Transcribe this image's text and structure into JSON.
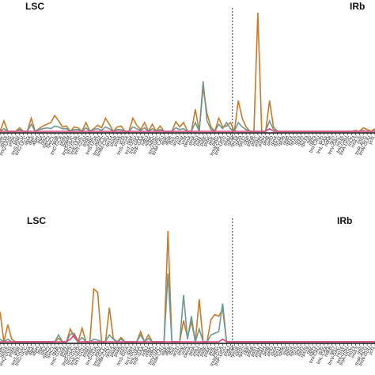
{
  "colors": {
    "orange": "#c8792a",
    "teal": "#6b9a94",
    "pink": "#e0407f",
    "axis": "#111111",
    "divider": "#333333"
  },
  "chart_data": [
    {
      "type": "line",
      "panel": "top",
      "regions": [
        "LSC",
        "IRb"
      ],
      "boundary_index": 59,
      "categories": [
        "psbA",
        "matK",
        "rps16",
        "trnQ-UUG",
        "psbK",
        "psbI",
        "trnS-GCU",
        "trnG-UCC",
        "atpA",
        "atpF",
        "atpH",
        "atpI",
        "rps2",
        "rpoC2",
        "rpoC1",
        "rpoB",
        "trnC-GCA",
        "petN",
        "psbM",
        "trnD-GUC",
        "trnY-GUA",
        "trnE-UUC",
        "trnT-GGU",
        "psbD",
        "psbC",
        "trnS-UGA",
        "psbZ",
        "trnG-GCC",
        "trnfM-CAU",
        "rps14",
        "psaB",
        "psaA",
        "ycf3",
        "trnS-GGA",
        "rps4",
        "trnT-UGU",
        "trnL-UAA",
        "trnF-GAA",
        "ndhJ",
        "ndhK",
        "ndhC",
        "trnV-UAC",
        "trnM-CAU",
        "atpE",
        "atpB",
        "rbcL",
        "accD",
        "psaI",
        "ycf4",
        "cemA",
        "petA",
        "psbJ",
        "psbL",
        "psbF",
        "psbE",
        "petL",
        "petG",
        "trnW-CCA",
        "trnP-UGG",
        "psaJ",
        "rpl33",
        "rps18",
        "rpl20",
        "rps12",
        "clpP",
        "psbB",
        "psbT",
        "psbN",
        "psbH",
        "petB",
        "petD",
        "rpoA",
        "rps11",
        "rpl36",
        "rps8",
        "rpl14",
        "rpl16",
        "rps3",
        "rpl22",
        "rps19",
        "rpl2",
        "rpl23",
        "trnI-CAU",
        "ycf2",
        "trnL-CAA",
        "ndhB",
        "rps7",
        "trnV-GAC",
        "rrn16",
        "trnI-GAU",
        "trnA-UGC",
        "rrn23",
        "rrn4.5",
        "rrn5",
        "trnR-ACG",
        "trnN-GUU",
        "ycf1"
      ],
      "series": [
        {
          "values": [
            0,
            1.2,
            0,
            0,
            0,
            0.4,
            0,
            0,
            1.5,
            0,
            0.3,
            0.6,
            0.8,
            1.0,
            1.8,
            1.2,
            0.5,
            0.6,
            0,
            0.5,
            0.4,
            0,
            1.0,
            0,
            0.3,
            0.7,
            0.4,
            1.5,
            0.8,
            0,
            0.5,
            0.6,
            0,
            0,
            1.5,
            0.7,
            0.2,
            1.0,
            0,
            0.8,
            0,
            0.6,
            0,
            0,
            0,
            1.1,
            0.5,
            1.0,
            0,
            0,
            2.5,
            0,
            5.0,
            2.0,
            0.5,
            0,
            1.5,
            0.5,
            0.6,
            1.0,
            0,
            3.5,
            1.5,
            0.5,
            0,
            0,
            13.5,
            0,
            0,
            3.5,
            0.5,
            0,
            0,
            0,
            0,
            0,
            0,
            0,
            0,
            0,
            0,
            0,
            0,
            0,
            0,
            0,
            0,
            0,
            0,
            0,
            0,
            0.1,
            0,
            0.4,
            0.2,
            0,
            0.3
          ]
        },
        {
          "values": [
            0,
            0.3,
            0,
            0,
            0,
            0.2,
            0,
            0,
            0.8,
            0,
            0.2,
            0.3,
            0.4,
            0.3,
            0.6,
            0.5,
            0.3,
            0.3,
            0,
            0.2,
            0.2,
            0,
            0.4,
            0,
            0.2,
            0.3,
            0.1,
            0.5,
            0.3,
            0,
            0.2,
            0.2,
            0,
            0,
            0.5,
            0.3,
            0.1,
            0.4,
            0,
            0.3,
            0,
            0.2,
            0,
            0,
            0,
            0.4,
            0.2,
            0.3,
            0,
            0,
            1.0,
            0,
            5.7,
            1.2,
            0.2,
            0,
            0.8,
            0.3,
            1.0,
            0.3,
            0,
            1.0,
            0.5,
            0.2,
            0,
            0,
            0,
            0,
            0,
            1.2,
            0.2,
            0,
            0,
            0,
            0,
            0,
            0,
            0,
            0,
            0,
            0,
            0,
            0,
            0,
            0,
            0,
            0,
            0,
            0,
            0,
            0,
            0,
            0,
            0.1,
            0,
            0,
            0.1
          ]
        },
        {
          "values": [
            0,
            0,
            0,
            0,
            0,
            0,
            0,
            0,
            0,
            0,
            0,
            0,
            0,
            0,
            0,
            0,
            0,
            0,
            0,
            0,
            0,
            0,
            0,
            0,
            0,
            0,
            0,
            0,
            0,
            0,
            0,
            0,
            0,
            0,
            0,
            0,
            0,
            0,
            0,
            0,
            0,
            0,
            0,
            0,
            0,
            0,
            0,
            0,
            0,
            0,
            0,
            0,
            0,
            0,
            0,
            0,
            0,
            0,
            0,
            0,
            0,
            0,
            0,
            0,
            0,
            0,
            0,
            0,
            0,
            0.3,
            0,
            0,
            0,
            0,
            0,
            0,
            0,
            0,
            0,
            0,
            0,
            0,
            0,
            0,
            0,
            0,
            0,
            0,
            0,
            0,
            0,
            0,
            0,
            0,
            0,
            0,
            0
          ]
        }
      ]
    },
    {
      "type": "line",
      "panel": "bottom",
      "regions": [
        "LSC",
        "IRb"
      ],
      "boundary_index": 59,
      "categories": [
        "psbA",
        "matK",
        "rps16",
        "trnQ-UUG",
        "psbK",
        "psbI",
        "trnS-GCU",
        "trnG-UCC",
        "atpA",
        "atpF",
        "atpH",
        "atpI",
        "rps2",
        "rpoC2",
        "rpoC1",
        "rpoB",
        "trnC-GCA",
        "petN",
        "psbM",
        "trnD-GUC",
        "trnY-GUA",
        "trnE-UUC",
        "trnT-GGU",
        "psbD",
        "psbC",
        "trnS-UGA",
        "psbZ",
        "trnG-GCC",
        "trnfM-CAU",
        "rps14",
        "psaB",
        "psaA",
        "ycf3",
        "trnS-GGA",
        "rps4",
        "trnT-UGU",
        "trnL-UAA",
        "trnF-GAA",
        "ndhJ",
        "ndhK",
        "ndhC",
        "trnV-UAC",
        "trnM-CAU",
        "atpE",
        "atpB",
        "rbcL",
        "accD",
        "psaI",
        "ycf4",
        "cemA",
        "petA",
        "psbJ",
        "psbL",
        "psbF",
        "psbE",
        "petL",
        "petG",
        "trnW-CCA",
        "trnP-UGG",
        "psaJ",
        "rpl33",
        "rps18",
        "rpl20",
        "rps12",
        "clpP",
        "psbB",
        "psbT",
        "psbN",
        "psbH",
        "petB",
        "petD",
        "rpoA",
        "rps11",
        "rpl36",
        "rps8",
        "rpl14",
        "rpl16",
        "rps3",
        "rpl22",
        "rps19",
        "rpl2",
        "rpl23",
        "trnI-CAU",
        "ycf2",
        "trnL-CAA",
        "ndhB",
        "rps7",
        "trnV-GAC",
        "rrn16",
        "trnI-GAU",
        "trnA-UGC",
        "rrn23",
        "rrn4.5",
        "rrn5",
        "trnR-ACG",
        "trnN-GUU",
        "ycf1"
      ],
      "series": [
        {
          "values": [
            3.5,
            0,
            2.0,
            0.3,
            0,
            0,
            0,
            0,
            0,
            0,
            0,
            0,
            0,
            0,
            0,
            0.4,
            0,
            0,
            1.5,
            0.5,
            0,
            1.6,
            0,
            0,
            6.2,
            5.8,
            0,
            0,
            4.0,
            0.4,
            0,
            0.5,
            0,
            0,
            0,
            0,
            1.2,
            0,
            0.8,
            0,
            0,
            0,
            0,
            13.0,
            0,
            0,
            0,
            2.5,
            0.5,
            2.4,
            0,
            5.0,
            0,
            0,
            2.6,
            3.2,
            3.0,
            3.8,
            0,
            0,
            0,
            0,
            0,
            0,
            0,
            0,
            0,
            0,
            0,
            0,
            0,
            0,
            0,
            0,
            0,
            0,
            0,
            0,
            0,
            0,
            0,
            0,
            0,
            0,
            0,
            0,
            0,
            0,
            0,
            0,
            0,
            0,
            0,
            0,
            0,
            0,
            0
          ]
        },
        {
          "values": [
            0.3,
            0,
            0.3,
            0,
            0,
            0,
            0,
            0,
            0,
            0,
            0,
            0,
            0,
            0,
            0,
            0.8,
            0,
            0,
            0.9,
            1.0,
            0,
            0.5,
            0,
            0,
            0.3,
            0.2,
            0,
            0,
            0.8,
            0.3,
            0,
            0.3,
            0,
            0,
            0,
            0,
            0.8,
            0,
            0.4,
            0,
            0,
            0,
            0,
            8.0,
            0,
            0,
            0,
            5.5,
            0.3,
            3.0,
            0,
            1.5,
            0,
            0,
            0.8,
            1.0,
            1.2,
            4.5,
            0,
            0,
            0,
            0,
            0,
            0,
            0,
            0,
            0,
            0,
            0,
            0,
            0,
            0,
            0,
            0,
            0,
            0,
            0,
            0,
            0,
            0,
            0,
            0,
            0,
            0,
            0,
            0,
            0,
            0,
            0,
            0,
            0,
            0,
            0,
            0,
            0,
            0,
            0
          ]
        },
        {
          "values": [
            0,
            0,
            0,
            0,
            0,
            0,
            0,
            0,
            0,
            0,
            0,
            0,
            0,
            0,
            0,
            0,
            0,
            0,
            0.3,
            0.8,
            0,
            0,
            0,
            0,
            0,
            0,
            0,
            0,
            0,
            0,
            0,
            0,
            0,
            0,
            0,
            0,
            0,
            0,
            0,
            0,
            0,
            0,
            0,
            0,
            0,
            0,
            0,
            0,
            0,
            0,
            0,
            0,
            0,
            0,
            0,
            0,
            0,
            0.3,
            0,
            0,
            0,
            0,
            0,
            0,
            0,
            0,
            0,
            0,
            0,
            0,
            0,
            0,
            0,
            0,
            0,
            0,
            0,
            0,
            0,
            0,
            0,
            0,
            0,
            0,
            0,
            0,
            0,
            0,
            0,
            0,
            0,
            0,
            0,
            0,
            0,
            0,
            0
          ]
        }
      ]
    }
  ]
}
